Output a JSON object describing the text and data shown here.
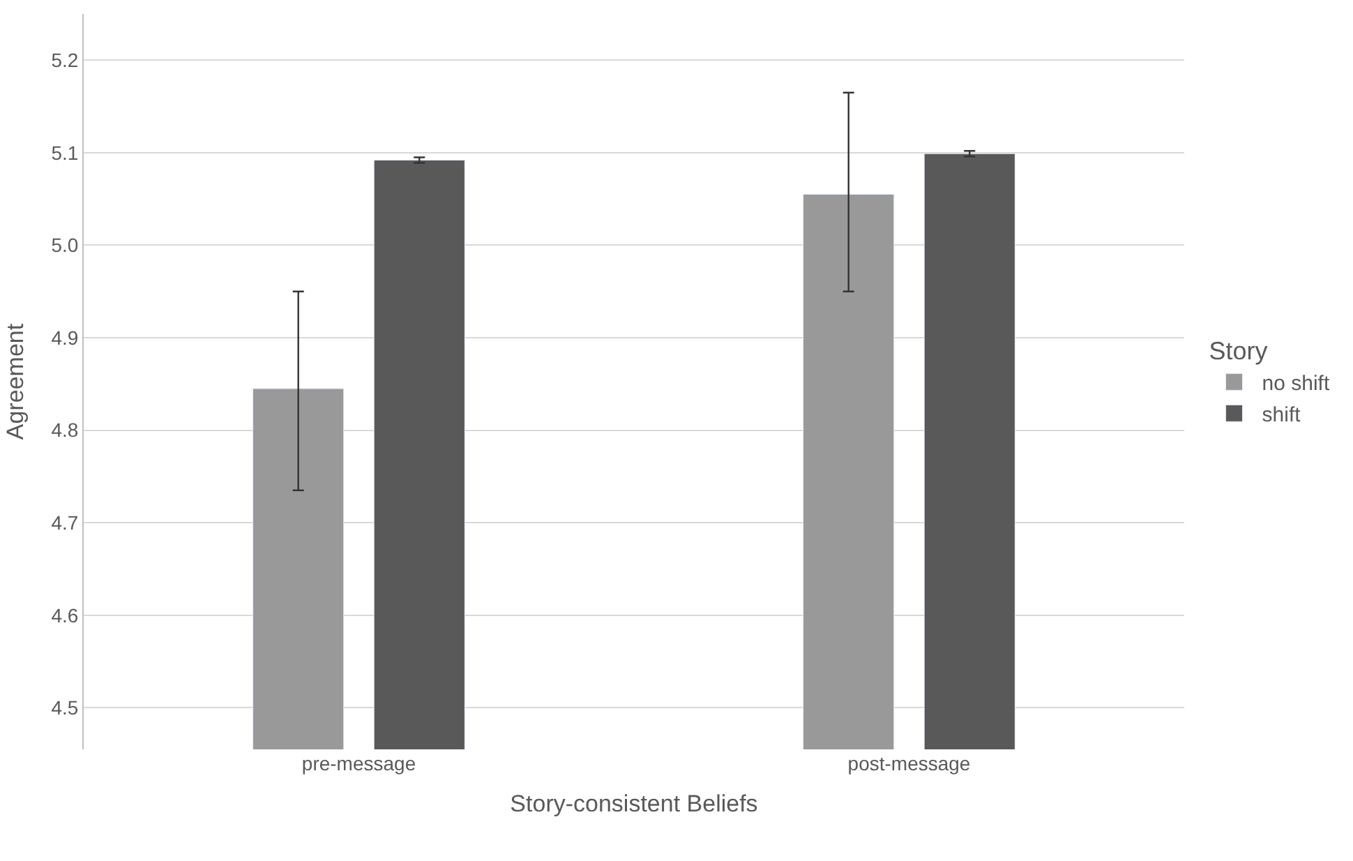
{
  "chart_data": {
    "type": "bar",
    "xlabel": "Story-consistent Beliefs",
    "ylabel": "Agreement",
    "legend_title": "Story",
    "categories": [
      "pre-message",
      "post-message"
    ],
    "series": [
      {
        "name": "no shift",
        "color": "#999999",
        "values": [
          4.845,
          5.055
        ],
        "errors": [
          [
            4.735,
            4.95
          ],
          [
            4.95,
            5.165
          ]
        ]
      },
      {
        "name": "shift",
        "color": "#595959",
        "values": [
          5.092,
          5.099
        ],
        "errors": [
          0.003,
          0.003
        ]
      }
    ],
    "ylim": [
      4.455,
      5.25
    ],
    "yticks": [
      4.5,
      4.6,
      4.7,
      4.8,
      4.9,
      {
        "value": 5,
        "label": "5.0"
      },
      5.1,
      5.2
    ],
    "grid": "y",
    "legend": "right"
  }
}
